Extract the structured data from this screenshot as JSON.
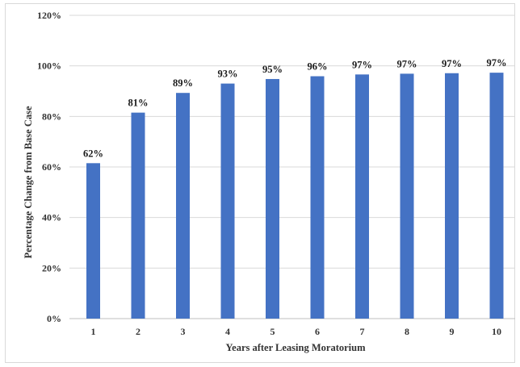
{
  "chart_data": {
    "type": "bar",
    "title": "",
    "xlabel": "Years after  Leasing Moratorium",
    "ylabel": "Percentage Change from Base Case",
    "categories": [
      "1",
      "2",
      "3",
      "4",
      "5",
      "6",
      "7",
      "8",
      "9",
      "10"
    ],
    "values": [
      62,
      81,
      89,
      93,
      95,
      96,
      97,
      97,
      97,
      97
    ],
    "bar_values_estimated": [
      61.5,
      81.5,
      89.3,
      93.0,
      94.8,
      95.9,
      96.6,
      96.9,
      97.1,
      97.3
    ],
    "data_labels": [
      "62%",
      "81%",
      "89%",
      "93%",
      "95%",
      "96%",
      "97%",
      "97%",
      "97%",
      "97%"
    ],
    "ylim": [
      0,
      120
    ],
    "yticks": [
      0,
      20,
      40,
      60,
      80,
      100,
      120
    ],
    "ytick_labels": [
      "0%",
      "20%",
      "40%",
      "60%",
      "80%",
      "100%",
      "120%"
    ],
    "grid": true,
    "legend": "none",
    "bar_color": "#4472c4",
    "grid_color": "#d9d9d9"
  }
}
